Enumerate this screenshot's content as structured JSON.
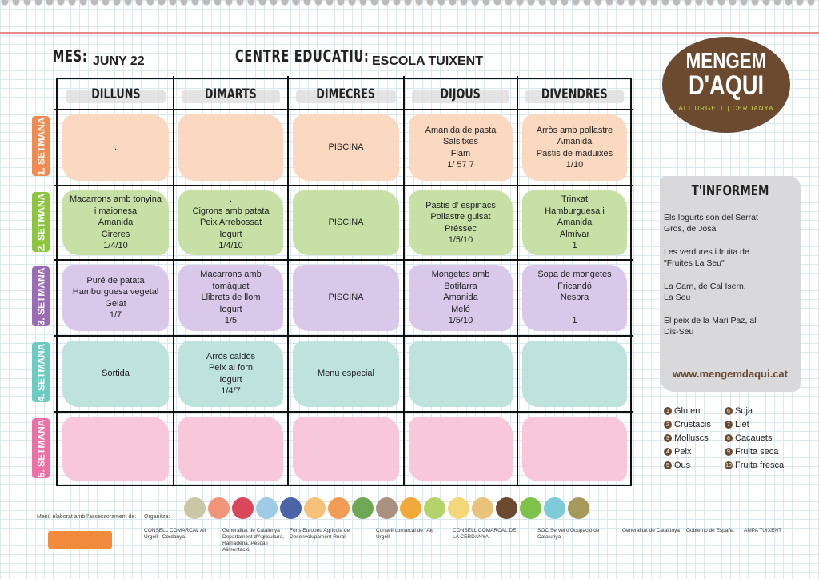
{
  "header": {
    "mes_label": "MES:",
    "mes": "JUNY 22",
    "centre_label": "CENTRE EDUCATIU:",
    "centre": "ESCOLA TUIXENT"
  },
  "days": [
    "DILLUNS",
    "DIMARTS",
    "DIMECRES",
    "DIJOUS",
    "DIVENDRES"
  ],
  "weeks": [
    {
      "label": "1. SETMANA",
      "tab_color": "#f28b52",
      "cell_color": "#fbd9c0",
      "cells": [
        ".",
        "",
        "PISCINA",
        "Amanida de pasta\nSalsitxes\nFlam\n1/ 57 7",
        "Arròs amb pollastre\nAmanida\nPastis de maduixes\n1/10"
      ]
    },
    {
      "label": "2. SETMANA",
      "tab_color": "#8cc63f",
      "cell_color": "#c6e0a6",
      "cells": [
        "Macarrons amb tonyina\ni maionesa\nAmanida\nCireres\n1/4/10",
        ".\nCigrons amb patata\nPeix Arrebossat\nIogurt\n1/4/10",
        "PISCINA",
        "Pastis d' espinacs\nPollastre guisat\nPréssec\n1/5/10",
        "Trinxat\nHamburguesa i\nAmanida\nAlmívar\n1"
      ]
    },
    {
      "label": "3. SETMANA",
      "tab_color": "#9b6bb5",
      "cell_color": "#d9c8ea",
      "cells": [
        "Puré de patata\nHamburguesa vegetal\nGelat\n1/7",
        "Macarrons amb\ntomàquet\nLlibrets de llom\nIogurt\n1/5",
        "PISCINA",
        "Mongetes amb\nBotifarra\nAmanida\nMeló\n1/5/10",
        "Sopa de mongetes\nFricandó\nNespra\n\n1"
      ]
    },
    {
      "label": "4. SETMANA",
      "tab_color": "#6ccbc3",
      "cell_color": "#bde3dc",
      "cells": [
        "Sortida",
        "Arròs caldós\nPeix al forn\nIogurt\n1/4/7",
        "Menu especial",
        "",
        ""
      ]
    },
    {
      "label": "5. SETMANA",
      "tab_color": "#ee6fa5",
      "cell_color": "#f8c7da",
      "cells": [
        "",
        "",
        "",
        "",
        ""
      ]
    }
  ],
  "logo": {
    "line1": "MENGEM",
    "line2": "D'AQUI",
    "line3": "ALT URGELL | CERDANYA"
  },
  "info": {
    "title": "T'INFORMEM",
    "notes": [
      " Els Iogurts son del Serrat\nGros, de Josa",
      "Les verdures i fruita de\n\"Fruites La Seu\"",
      "La Carn, de Cal Isern,\nLa Seu",
      "El peix de la Mari Paz, al\nDis-Seu"
    ],
    "web": "www.mengemdaqui.cat"
  },
  "allergens": [
    {
      "n": "1",
      "name": "Gluten"
    },
    {
      "n": "6",
      "name": "Soja"
    },
    {
      "n": "2",
      "name": "Crustacis"
    },
    {
      "n": "7",
      "name": "Llet"
    },
    {
      "n": "3",
      "name": "Molluscs"
    },
    {
      "n": "8",
      "name": "Cacauets"
    },
    {
      "n": "4",
      "name": "Peix"
    },
    {
      "n": "9",
      "name": "Fruita seca"
    },
    {
      "n": "5",
      "name": "Ous"
    },
    {
      "n": "10",
      "name": "Fruita fresca"
    }
  ],
  "food_icon_colors": [
    "#c9c7a4",
    "#f0957a",
    "#d9475a",
    "#9fcbe6",
    "#4c63a8",
    "#f6c27b",
    "#f19b55",
    "#6fa854",
    "#a8927f",
    "#f2a93b",
    "#b5d36b",
    "#f4d77b",
    "#e9c27e",
    "#6b4a2f",
    "#7ec24b",
    "#7ccbd6",
    "#a59a5c"
  ],
  "footer": {
    "credit": "Menú elaborat amb l'assessorament de:",
    "organitza": "Organitza:",
    "sponsors": [
      "CONSELL COMARCAL Alt Urgell · Cerdanya",
      "Generalitat de Catalunya Departament d'Agricultura, Ramaderia, Pesca i Alimentació",
      "Fons Europeu Agrícola de Desenvolupament Rural",
      "Consell comarcal de l'Alt Urgell",
      "CONSELL COMARCAL DE LA CERDANYA",
      "SOC Servei d'Ocupació de Catalunya",
      "Generalitat de Catalunya",
      "Gobierno de España",
      "AMPA TUIXENT"
    ]
  }
}
